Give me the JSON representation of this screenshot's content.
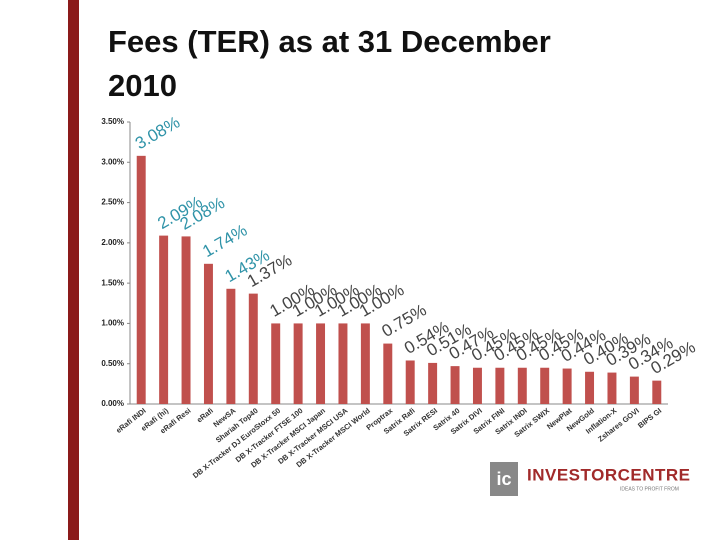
{
  "chart_data": {
    "type": "bar",
    "title": "Fees (TER) as at 31 December 2010",
    "categories": [
      "eRafi INDI",
      "eRafi (hi)",
      "eRafi Resi",
      "eRafi",
      "NewSA",
      "Shariah Top40",
      "DB X-Tracker DJ EuroStoxx 50",
      "DB X-Tracker FTSE 100",
      "DB X-Tracker MSCI Japan",
      "DB X-Tracker MSCI USA",
      "DB X-Tracker MSCI World",
      "Proptrax",
      "Satrix Rafi",
      "Satrix RESI",
      "Satrix 40",
      "Satrix DIVI",
      "Satrix FINI",
      "Satrix INDI",
      "Satrix SWIX",
      "NewPlat",
      "NewGold",
      "Inflation-X",
      "Zshares GOVI",
      "BIPS GI"
    ],
    "values": [
      3.08,
      2.09,
      2.08,
      1.74,
      1.43,
      1.37,
      1.0,
      1.0,
      1.0,
      1.0,
      1.0,
      0.75,
      0.54,
      0.51,
      0.47,
      0.45,
      0.45,
      0.45,
      0.45,
      0.44,
      0.4,
      0.39,
      0.34,
      0.29
    ],
    "value_labels": [
      "3.08%",
      "2.09%",
      "2.08%",
      "1.74%",
      "1.43%",
      "1.37%",
      "1.00%",
      "1.00%",
      "1.00%",
      "1.00%",
      "1.00%",
      "0.75%",
      "0.54%",
      "0.51%",
      "0.47%",
      "0.45%",
      "0.45%",
      "0.45%",
      "0.45%",
      "0.44%",
      "0.40%",
      "0.39%",
      "0.34%",
      "0.29%"
    ],
    "color": "#c0504d",
    "ylim": [
      0,
      3.5
    ],
    "yticks": [
      {
        "value": 0,
        "label": "0.00%"
      },
      {
        "value": 0.5,
        "label": "0.50%"
      },
      {
        "value": 1,
        "label": "1.00%"
      },
      {
        "value": 1.5,
        "label": "1.50%"
      },
      {
        "value": 2,
        "label": "2.00%"
      },
      {
        "value": 2.5,
        "label": "2.50%"
      },
      {
        "value": 3,
        "label": "3.00%"
      },
      {
        "value": 3.5,
        "label": "3.50%"
      }
    ],
    "grid": false
  },
  "branding": {
    "mark": "ic",
    "name": "INVESTORCENTRE",
    "tagline": "IDEAS TO PROFIT FROM"
  }
}
